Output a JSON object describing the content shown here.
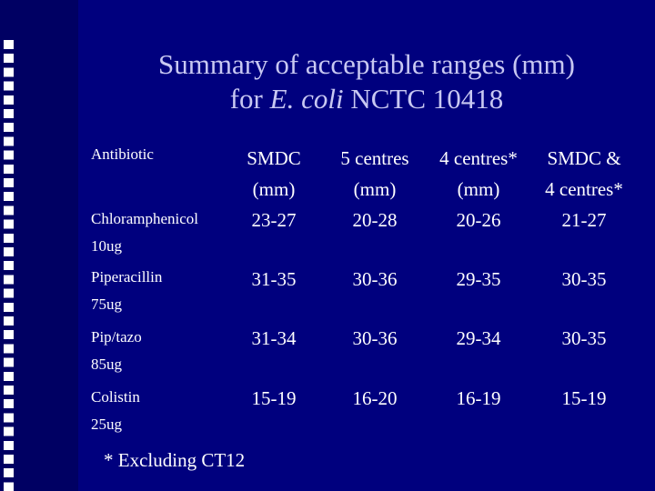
{
  "slide": {
    "title_line1": "Summary of acceptable ranges (mm)",
    "title_prefix": "for ",
    "title_italic": "E. coli",
    "title_suffix": " NCTC 10418",
    "footnote": "* Excluding CT12"
  },
  "table": {
    "headers": [
      {
        "line1": "Antibiotic",
        "line2": ""
      },
      {
        "line1": "SMDC",
        "line2": "(mm)"
      },
      {
        "line1": "5 centres",
        "line2": "(mm)"
      },
      {
        "line1": "4 centres*",
        "line2": "(mm)"
      },
      {
        "line1": "SMDC &",
        "line2": "4 centres*"
      }
    ],
    "rows": [
      {
        "name": "Chloramphenicol",
        "dose": "10ug",
        "values": [
          "23-27",
          "20-28",
          "20-26",
          "21-27"
        ]
      },
      {
        "name": "Piperacillin",
        "dose": "75ug",
        "values": [
          "31-35",
          "30-36",
          "29-35",
          "30-35"
        ]
      },
      {
        "name": "Pip/tazo",
        "dose": "85ug",
        "values": [
          "31-34",
          "30-36",
          "29-34",
          "30-35"
        ]
      },
      {
        "name": "Colistin",
        "dose": "25ug",
        "values": [
          "15-19",
          "16-20",
          "16-19",
          "15-19"
        ]
      }
    ]
  },
  "colors": {
    "background": "#00007e",
    "stripe": "#000063",
    "title": "#c8c8f2",
    "text": "#ffffff"
  }
}
